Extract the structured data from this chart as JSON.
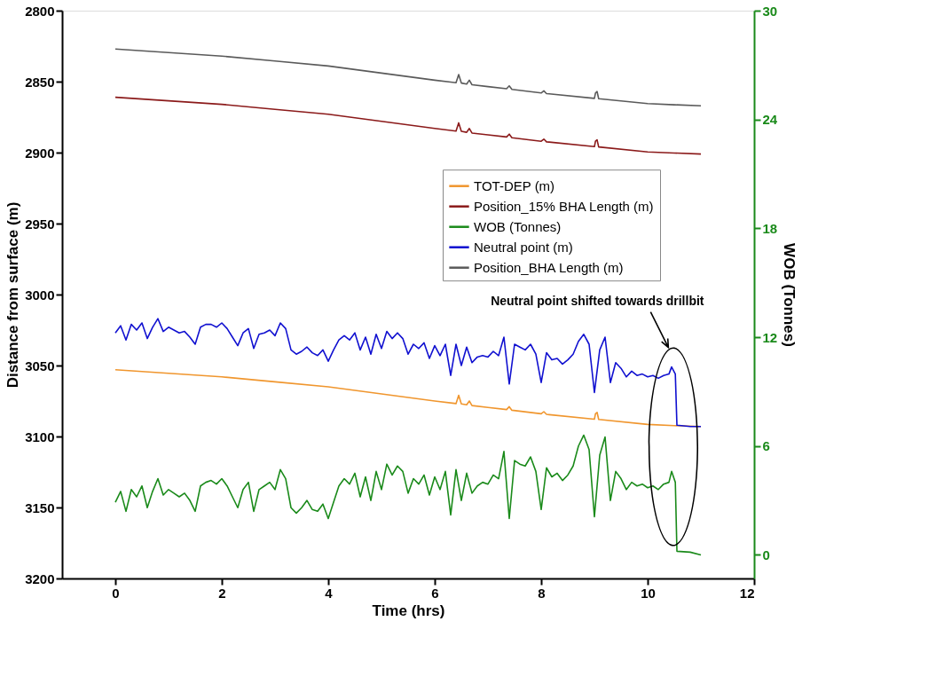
{
  "chart_data": {
    "type": "line",
    "xlabel": "Time (hrs)",
    "ylabel": "Distance from surface (m)",
    "y2label": "WOB (Tonnes)",
    "xlim": [
      -1,
      12
    ],
    "xticks": [
      0,
      2,
      4,
      6,
      8,
      10,
      12
    ],
    "ylim": [
      3200,
      2800
    ],
    "yticks": [
      2800,
      2850,
      2900,
      2950,
      3000,
      3050,
      3100,
      3150,
      3200
    ],
    "y2lim": [
      -1.3,
      30
    ],
    "y2ticks": [
      0,
      6,
      12,
      18,
      24,
      30
    ],
    "legend": "right",
    "grid": false,
    "line_style": "solid",
    "marker": "none",
    "annotations": [
      "Neutral point shifted towards drillbit"
    ],
    "series": [
      {
        "name": "TOT-DEP (m)",
        "color": "#f0962e",
        "x": [
          0,
          1,
          2,
          3,
          4,
          5,
          6,
          6.4,
          6.45,
          6.5,
          6.6,
          6.65,
          6.7,
          7,
          7.35,
          7.4,
          7.45,
          8,
          8.05,
          8.1,
          8.15,
          9,
          9.02,
          9.05,
          9.08,
          10,
          10.5,
          11
        ],
        "values": [
          3053,
          3055.5,
          3058,
          3061.5,
          3065,
          3070,
          3075,
          3076.8,
          3071,
          3077,
          3077.7,
          3075,
          3078.2,
          3079.5,
          3081,
          3079,
          3081.5,
          3084,
          3082.5,
          3084.4,
          3084.6,
          3087.8,
          3084,
          3083,
          3088,
          3091.5,
          3092.3,
          3093
        ]
      },
      {
        "name": "Position_15% BHA Length (m)",
        "color": "#8b1a1a",
        "x": [
          0,
          1,
          2,
          3,
          4,
          5,
          6,
          6.4,
          6.45,
          6.5,
          6.6,
          6.65,
          6.7,
          7,
          7.35,
          7.4,
          7.45,
          8,
          8.05,
          8.1,
          8.15,
          9,
          9.02,
          9.05,
          9.08,
          10,
          10.5,
          11
        ],
        "values": [
          2861,
          2863.5,
          2866,
          2869.5,
          2873,
          2878,
          2883,
          2884.8,
          2879,
          2885,
          2885.7,
          2883,
          2886.2,
          2887.5,
          2889,
          2887,
          2889.5,
          2892,
          2890.5,
          2892.4,
          2892.6,
          2895.8,
          2892,
          2891,
          2896,
          2899.5,
          2900.3,
          2901
        ]
      },
      {
        "name": "WOB (Tonnes)",
        "color": "#1a8a1a",
        "axis": "y2",
        "x": [
          0,
          0.1,
          0.2,
          0.3,
          0.4,
          0.5,
          0.6,
          0.7,
          0.8,
          0.9,
          1.0,
          1.1,
          1.2,
          1.3,
          1.4,
          1.5,
          1.6,
          1.7,
          1.8,
          1.9,
          2.0,
          2.1,
          2.2,
          2.3,
          2.4,
          2.5,
          2.6,
          2.7,
          2.8,
          2.9,
          3.0,
          3.1,
          3.2,
          3.3,
          3.4,
          3.5,
          3.6,
          3.7,
          3.8,
          3.9,
          4.0,
          4.1,
          4.2,
          4.3,
          4.4,
          4.5,
          4.6,
          4.7,
          4.8,
          4.9,
          5.0,
          5.1,
          5.2,
          5.3,
          5.4,
          5.5,
          5.6,
          5.7,
          5.8,
          5.9,
          6.0,
          6.1,
          6.2,
          6.3,
          6.4,
          6.5,
          6.6,
          6.7,
          6.8,
          6.9,
          7.0,
          7.1,
          7.2,
          7.3,
          7.4,
          7.5,
          7.6,
          7.7,
          7.8,
          7.9,
          8.0,
          8.1,
          8.2,
          8.3,
          8.4,
          8.5,
          8.6,
          8.7,
          8.8,
          8.9,
          9.0,
          9.1,
          9.2,
          9.3,
          9.4,
          9.5,
          9.6,
          9.7,
          9.8,
          9.9,
          10.0,
          10.1,
          10.2,
          10.3,
          10.4,
          10.45,
          10.52,
          10.55,
          10.8,
          11.0
        ],
        "values": [
          2.9,
          3.5,
          2.4,
          3.6,
          3.2,
          3.8,
          2.6,
          3.5,
          4.2,
          3.3,
          3.6,
          3.4,
          3.2,
          3.4,
          3.0,
          2.4,
          3.8,
          4.0,
          4.1,
          3.9,
          4.2,
          3.8,
          3.2,
          2.6,
          3.6,
          4.0,
          2.4,
          3.6,
          3.8,
          4.0,
          3.6,
          4.7,
          4.2,
          2.6,
          2.3,
          2.6,
          3.0,
          2.5,
          2.4,
          2.8,
          2.0,
          2.9,
          3.8,
          4.2,
          3.9,
          4.5,
          3.2,
          4.3,
          3.0,
          4.6,
          3.6,
          5.0,
          4.4,
          4.9,
          4.6,
          3.4,
          4.2,
          3.9,
          4.4,
          3.3,
          4.3,
          3.6,
          4.6,
          2.2,
          4.7,
          3.0,
          4.5,
          3.4,
          3.8,
          4.0,
          3.9,
          4.4,
          4.2,
          5.7,
          2.0,
          5.2,
          5.0,
          4.9,
          5.4,
          4.6,
          2.5,
          4.8,
          4.3,
          4.5,
          4.1,
          4.4,
          4.9,
          6.0,
          6.6,
          5.8,
          2.1,
          5.5,
          6.5,
          3.0,
          4.6,
          4.2,
          3.6,
          4.0,
          3.8,
          3.9,
          3.7,
          3.8,
          3.6,
          3.9,
          4.0,
          4.6,
          4.0,
          0.2,
          0.15,
          0.0
        ]
      },
      {
        "name": "Neutral point (m)",
        "color": "#1010d0",
        "x": [
          0,
          0.1,
          0.2,
          0.3,
          0.4,
          0.5,
          0.6,
          0.7,
          0.8,
          0.9,
          1.0,
          1.1,
          1.2,
          1.3,
          1.4,
          1.5,
          1.6,
          1.7,
          1.8,
          1.9,
          2.0,
          2.1,
          2.2,
          2.3,
          2.4,
          2.5,
          2.6,
          2.7,
          2.8,
          2.9,
          3.0,
          3.1,
          3.2,
          3.3,
          3.4,
          3.5,
          3.6,
          3.7,
          3.8,
          3.9,
          4.0,
          4.1,
          4.2,
          4.3,
          4.4,
          4.5,
          4.6,
          4.7,
          4.8,
          4.9,
          5.0,
          5.1,
          5.2,
          5.3,
          5.4,
          5.5,
          5.6,
          5.7,
          5.8,
          5.9,
          6.0,
          6.1,
          6.2,
          6.3,
          6.4,
          6.5,
          6.6,
          6.7,
          6.8,
          6.9,
          7.0,
          7.1,
          7.2,
          7.3,
          7.4,
          7.5,
          7.6,
          7.7,
          7.8,
          7.9,
          8.0,
          8.1,
          8.2,
          8.3,
          8.4,
          8.5,
          8.6,
          8.7,
          8.8,
          8.9,
          9.0,
          9.1,
          9.2,
          9.3,
          9.4,
          9.5,
          9.6,
          9.7,
          9.8,
          9.9,
          10.0,
          10.1,
          10.2,
          10.3,
          10.4,
          10.45,
          10.52,
          10.55,
          10.8,
          11.0
        ],
        "values": [
          3027,
          3022,
          3032,
          3021,
          3025,
          3020,
          3031,
          3023,
          3017,
          3026,
          3023,
          3025,
          3027,
          3026,
          3030,
          3035,
          3023,
          3021,
          3021,
          3023,
          3020,
          3024,
          3030,
          3036,
          3027,
          3024,
          3038,
          3028,
          3027,
          3025,
          3029,
          3020,
          3024,
          3039,
          3042,
          3040,
          3037,
          3041,
          3043,
          3039,
          3047,
          3039,
          3032,
          3029,
          3032,
          3027,
          3039,
          3030,
          3042,
          3028,
          3038,
          3026,
          3031,
          3027,
          3031,
          3042,
          3035,
          3038,
          3034,
          3045,
          3036,
          3043,
          3035,
          3057,
          3035,
          3050,
          3037,
          3048,
          3044,
          3043,
          3044,
          3040,
          3043,
          3030,
          3063,
          3035,
          3037,
          3039,
          3035,
          3042,
          3062,
          3041,
          3046,
          3045,
          3049,
          3046,
          3042,
          3033,
          3028,
          3035,
          3069,
          3039,
          3030,
          3062,
          3048,
          3052,
          3058,
          3054,
          3057,
          3056,
          3058,
          3057,
          3059,
          3057,
          3056,
          3051,
          3056,
          3092,
          3093,
          3093
        ]
      },
      {
        "name": "Position_BHA Length (m)",
        "color": "#5a5a5a",
        "x": [
          0,
          1,
          2,
          3,
          4,
          5,
          6,
          6.4,
          6.45,
          6.5,
          6.6,
          6.65,
          6.7,
          7,
          7.35,
          7.4,
          7.45,
          8,
          8.05,
          8.1,
          8.15,
          9,
          9.02,
          9.05,
          9.08,
          10,
          10.5,
          11
        ],
        "values": [
          2827,
          2829.5,
          2832,
          2835.5,
          2839,
          2844,
          2849,
          2850.8,
          2845,
          2851,
          2851.7,
          2849,
          2852.2,
          2853.5,
          2855,
          2853,
          2855.5,
          2858,
          2856.5,
          2858.4,
          2858.6,
          2861.8,
          2858,
          2857,
          2862,
          2865.5,
          2866.3,
          2867
        ]
      }
    ]
  }
}
